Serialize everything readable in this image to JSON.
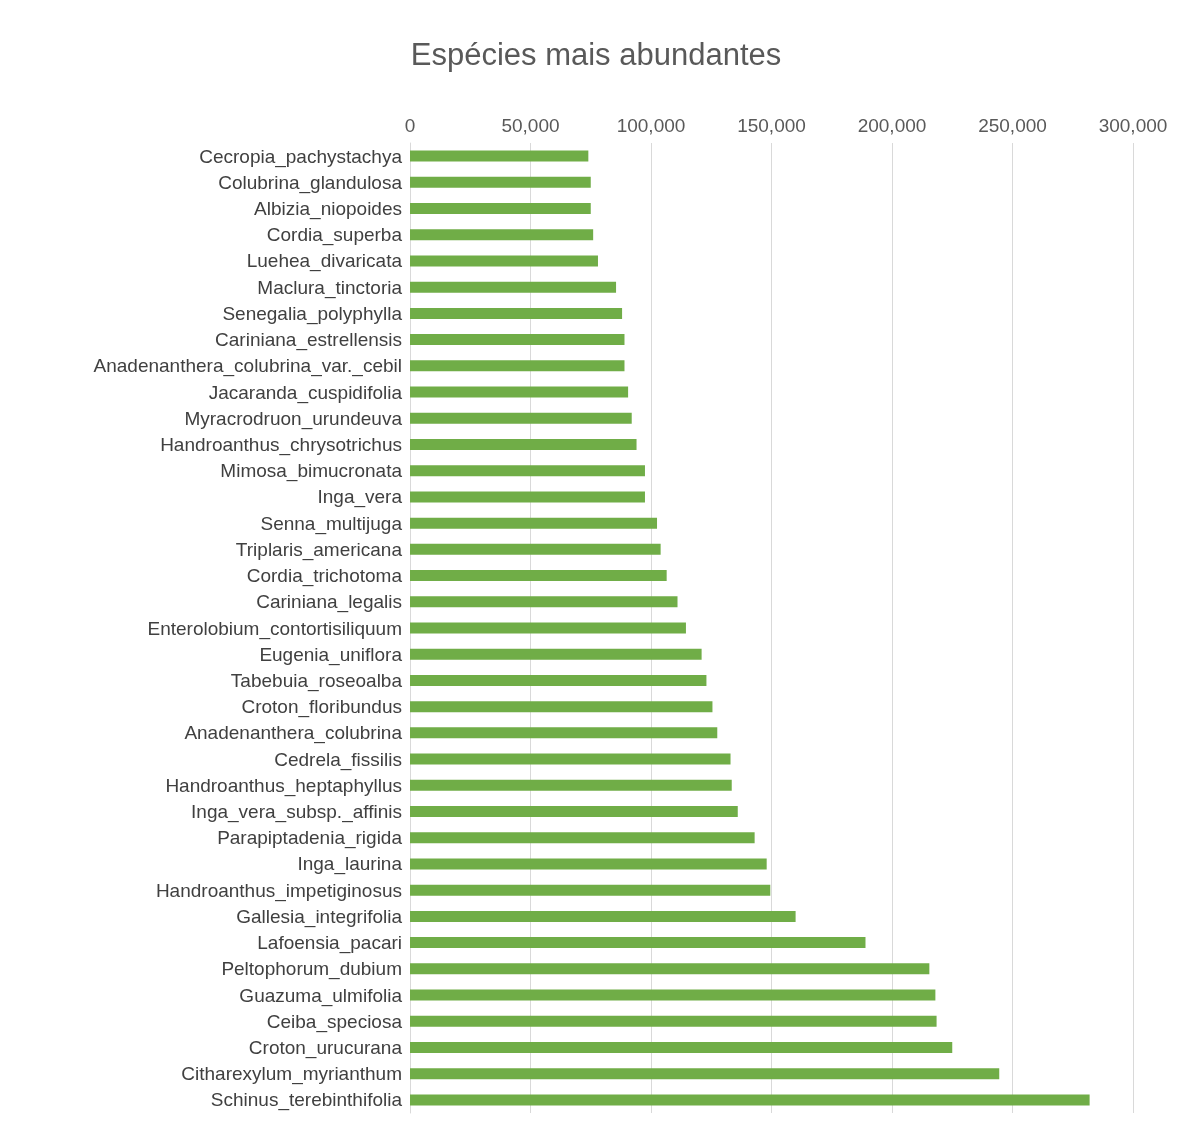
{
  "chart_data": {
    "type": "bar",
    "title": "Espécies mais abundantes",
    "orientation": "horizontal",
    "categories": [
      "Cecropia_pachystachya",
      "Colubrina_glandulosa",
      "Albizia_niopoides",
      "Cordia_superba",
      "Luehea_divaricata",
      "Maclura_tinctoria",
      "Senegalia_polyphylla",
      "Cariniana_estrellensis",
      "Anadenanthera_colubrina_var._cebil",
      "Jacaranda_cuspidifolia",
      "Myracrodruon_urundeuva",
      "Handroanthus_chrysotrichus",
      "Mimosa_bimucronata",
      "Inga_vera",
      "Senna_multijuga",
      "Triplaris_americana",
      "Cordia_trichotoma",
      "Cariniana_legalis",
      "Enterolobium_contortisiliquum",
      "Eugenia_uniflora",
      "Tabebuia_roseoalba",
      "Croton_floribundus",
      "Anadenanthera_colubrina",
      "Cedrela_fissilis",
      "Handroanthus_heptaphyllus",
      "Inga_vera_subsp._affinis",
      "Parapiptadenia_rigida",
      "Inga_laurina",
      "Handroanthus_impetiginosus",
      "Gallesia_integrifolia",
      "Lafoensia_pacari",
      "Peltophorum_dubium",
      "Guazuma_ulmifolia",
      "Ceiba_speciosa",
      "Croton_urucurana",
      "Citharexylum_myrianthum",
      "Schinus_terebinthifolia"
    ],
    "values": [
      74000,
      75000,
      75000,
      76000,
      78000,
      85500,
      88000,
      89000,
      89000,
      90500,
      92000,
      94000,
      97500,
      97500,
      102500,
      104000,
      106500,
      111000,
      114500,
      121000,
      123000,
      125500,
      127500,
      133000,
      133500,
      136000,
      143000,
      148000,
      149500,
      160000,
      189000,
      215500,
      218000,
      218500,
      225000,
      244500,
      282000
    ],
    "color": "#70ad47",
    "xlim": [
      0,
      300000
    ],
    "xticks": [
      0,
      {
        "value": 50000,
        "label": "50,000"
      },
      {
        "value": 100000,
        "label": "100,000"
      },
      {
        "value": 150000,
        "label": "150,000"
      },
      {
        "value": 200000,
        "label": "200,000"
      },
      {
        "value": 250000,
        "label": "250,000"
      },
      {
        "value": 300000,
        "label": "300,000"
      }
    ],
    "grid": "x"
  }
}
